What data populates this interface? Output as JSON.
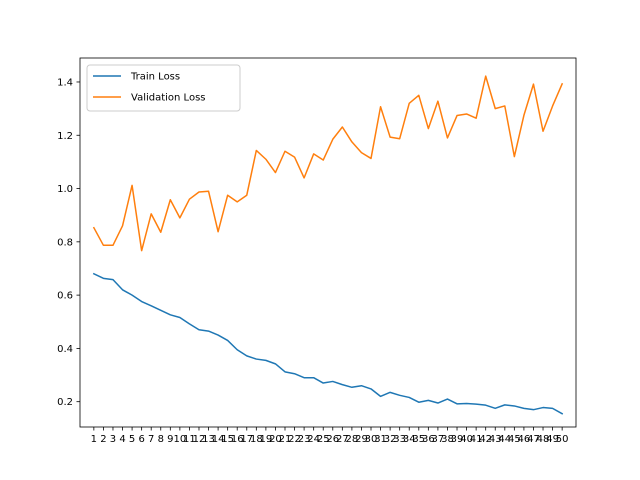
{
  "chart_data": {
    "type": "line",
    "title": "",
    "xlabel": "",
    "ylabel": "",
    "x": [
      1,
      2,
      3,
      4,
      5,
      6,
      7,
      8,
      9,
      10,
      11,
      12,
      13,
      14,
      15,
      16,
      17,
      18,
      19,
      20,
      21,
      22,
      23,
      24,
      25,
      26,
      27,
      28,
      29,
      30,
      31,
      32,
      33,
      34,
      35,
      36,
      37,
      38,
      39,
      40,
      41,
      42,
      43,
      44,
      45,
      46,
      47,
      48,
      49,
      50
    ],
    "xlim": [
      -0.45,
      51.45
    ],
    "ylim": [
      0.105,
      1.49
    ],
    "yticks": [
      0.2,
      0.4,
      0.6,
      0.8,
      1.0,
      1.2,
      1.4
    ],
    "grid": false,
    "legend": "upper-left",
    "series": [
      {
        "name": "Train Loss",
        "color": "#1f77b4",
        "values": [
          0.68,
          0.663,
          0.658,
          0.62,
          0.6,
          0.576,
          0.56,
          0.543,
          0.526,
          0.516,
          0.492,
          0.47,
          0.465,
          0.45,
          0.43,
          0.395,
          0.372,
          0.36,
          0.355,
          0.342,
          0.312,
          0.305,
          0.29,
          0.29,
          0.27,
          0.276,
          0.264,
          0.254,
          0.26,
          0.248,
          0.22,
          0.235,
          0.224,
          0.216,
          0.198,
          0.205,
          0.195,
          0.21,
          0.192,
          0.193,
          0.191,
          0.187,
          0.175,
          0.188,
          0.184,
          0.175,
          0.17,
          0.178,
          0.175,
          0.155
        ]
      },
      {
        "name": "Validation Loss",
        "color": "#ff7f0e",
        "values": [
          0.853,
          0.787,
          0.787,
          0.86,
          1.012,
          0.767,
          0.905,
          0.836,
          0.958,
          0.89,
          0.96,
          0.987,
          0.99,
          0.838,
          0.975,
          0.95,
          0.975,
          1.143,
          1.11,
          1.06,
          1.14,
          1.118,
          1.04,
          1.13,
          1.107,
          1.185,
          1.231,
          1.175,
          1.135,
          1.113,
          1.307,
          1.193,
          1.187,
          1.32,
          1.35,
          1.225,
          1.328,
          1.19,
          1.274,
          1.28,
          1.264,
          1.422,
          1.3,
          1.31,
          1.12,
          1.275,
          1.392,
          1.215,
          1.31,
          1.393
        ]
      }
    ]
  }
}
